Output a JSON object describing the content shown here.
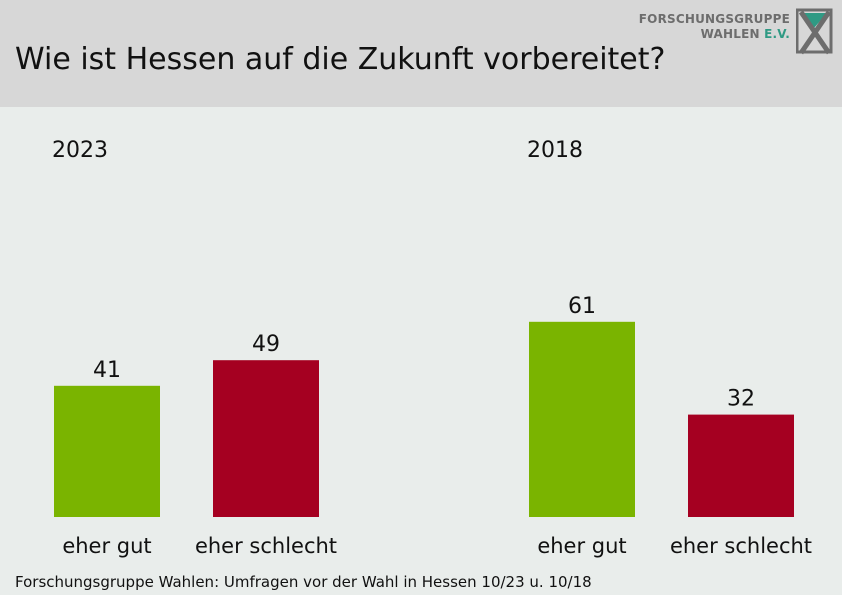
{
  "title": "Wie ist Hessen auf die Zukunft vorbereitet?",
  "logo": {
    "line1": "FORSCHUNGSGRUPPE",
    "line2_a": "WAHLEN ",
    "line2_b": "E.V.",
    "text_color": "#6d6d6d",
    "accent_color": "#2f9a84"
  },
  "footer": "Forschungsgruppe Wahlen: Umfragen vor der Wahl in Hessen 10/23 u. 10/18",
  "colors": {
    "header_bg": "#d7d7d7",
    "chart_bg": "#e9edeb",
    "good": "#7ab400",
    "bad": "#a50021"
  },
  "chart_data": [
    {
      "type": "bar",
      "panel_label": "2023",
      "categories": [
        "eher gut",
        "eher schlecht"
      ],
      "values": [
        41,
        49
      ],
      "colors": [
        "#7ab400",
        "#a50021"
      ],
      "ylim": [
        0,
        100
      ]
    },
    {
      "type": "bar",
      "panel_label": "2018",
      "categories": [
        "eher gut",
        "eher schlecht"
      ],
      "values": [
        61,
        32
      ],
      "colors": [
        "#7ab400",
        "#a50021"
      ],
      "ylim": [
        0,
        100
      ]
    }
  ]
}
